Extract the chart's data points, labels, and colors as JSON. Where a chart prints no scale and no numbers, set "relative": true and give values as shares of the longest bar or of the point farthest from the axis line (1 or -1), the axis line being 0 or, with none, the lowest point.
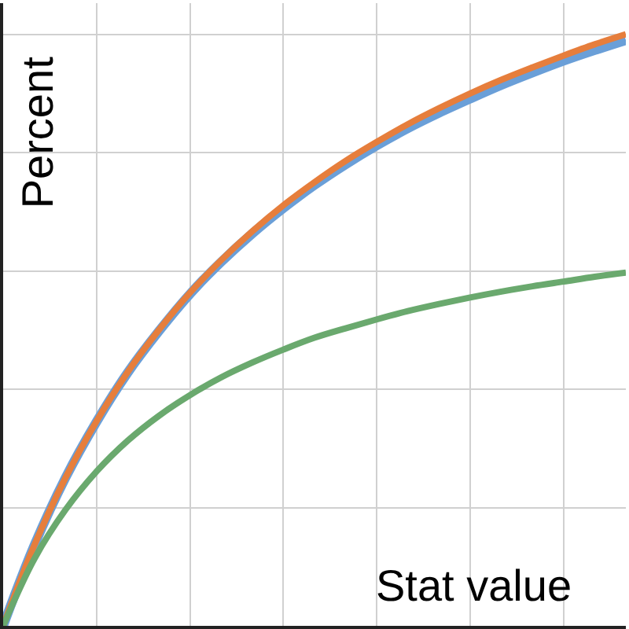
{
  "chart_data": {
    "type": "line",
    "relative": true,
    "xlabel": "Stat value",
    "ylabel": "Percent",
    "grid": true,
    "line_style": "solid",
    "categories": [
      null,
      null,
      null,
      null,
      null,
      null,
      null,
      null,
      null,
      null,
      null,
      null,
      null,
      null,
      null,
      null,
      null,
      null,
      null,
      null,
      null
    ],
    "series": [
      {
        "color": "#6a9fd8",
        "values": [
          0,
          0.136,
          0.25,
          0.345,
          0.428,
          0.498,
          0.561,
          0.615,
          0.663,
          0.706,
          0.745,
          0.78,
          0.812,
          0.841,
          0.867,
          0.891,
          0.914,
          0.935,
          0.955,
          0.973,
          0.99
        ]
      },
      {
        "color": "#e67e3c",
        "values": [
          0,
          0.136,
          0.25,
          0.346,
          0.429,
          0.5,
          0.563,
          0.618,
          0.667,
          0.711,
          0.75,
          0.786,
          0.818,
          0.848,
          0.875,
          0.9,
          0.923,
          0.944,
          0.964,
          0.983,
          1
        ]
      },
      {
        "color": "#6aa96e",
        "values": [
          0,
          0.113,
          0.196,
          0.261,
          0.313,
          0.355,
          0.39,
          0.42,
          0.445,
          0.467,
          0.487,
          0.503,
          0.518,
          0.532,
          0.544,
          0.555,
          0.565,
          0.574,
          0.582,
          0.59,
          0.597
        ]
      }
    ]
  }
}
